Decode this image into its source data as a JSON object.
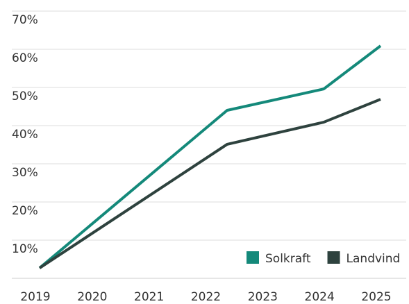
{
  "chart_data": {
    "type": "line",
    "x": [
      2019,
      2022.3,
      2024,
      2025
    ],
    "series": [
      {
        "name": "Solkraft",
        "color": "#14897a",
        "values": [
          2.7,
          44,
          49.6,
          60.9
        ]
      },
      {
        "name": "Landvind",
        "color": "#2e423e",
        "values": [
          2.7,
          35.1,
          40.9,
          46.9
        ]
      }
    ],
    "xlim": [
      2019,
      2025
    ],
    "xticks": [
      2019,
      2020,
      2021,
      2022,
      2023,
      2024,
      2025
    ],
    "ylim": [
      0,
      70
    ],
    "yticks": [
      {
        "value": 10,
        "label": "10%"
      },
      {
        "value": 20,
        "label": "20%"
      },
      {
        "value": 30,
        "label": "30%"
      },
      {
        "value": 40,
        "label": "40%"
      },
      {
        "value": 50,
        "label": "50%"
      },
      {
        "value": 60,
        "label": "60%"
      },
      {
        "value": 70,
        "label": "70%"
      }
    ],
    "grid": true,
    "legend": "bottom-right"
  }
}
